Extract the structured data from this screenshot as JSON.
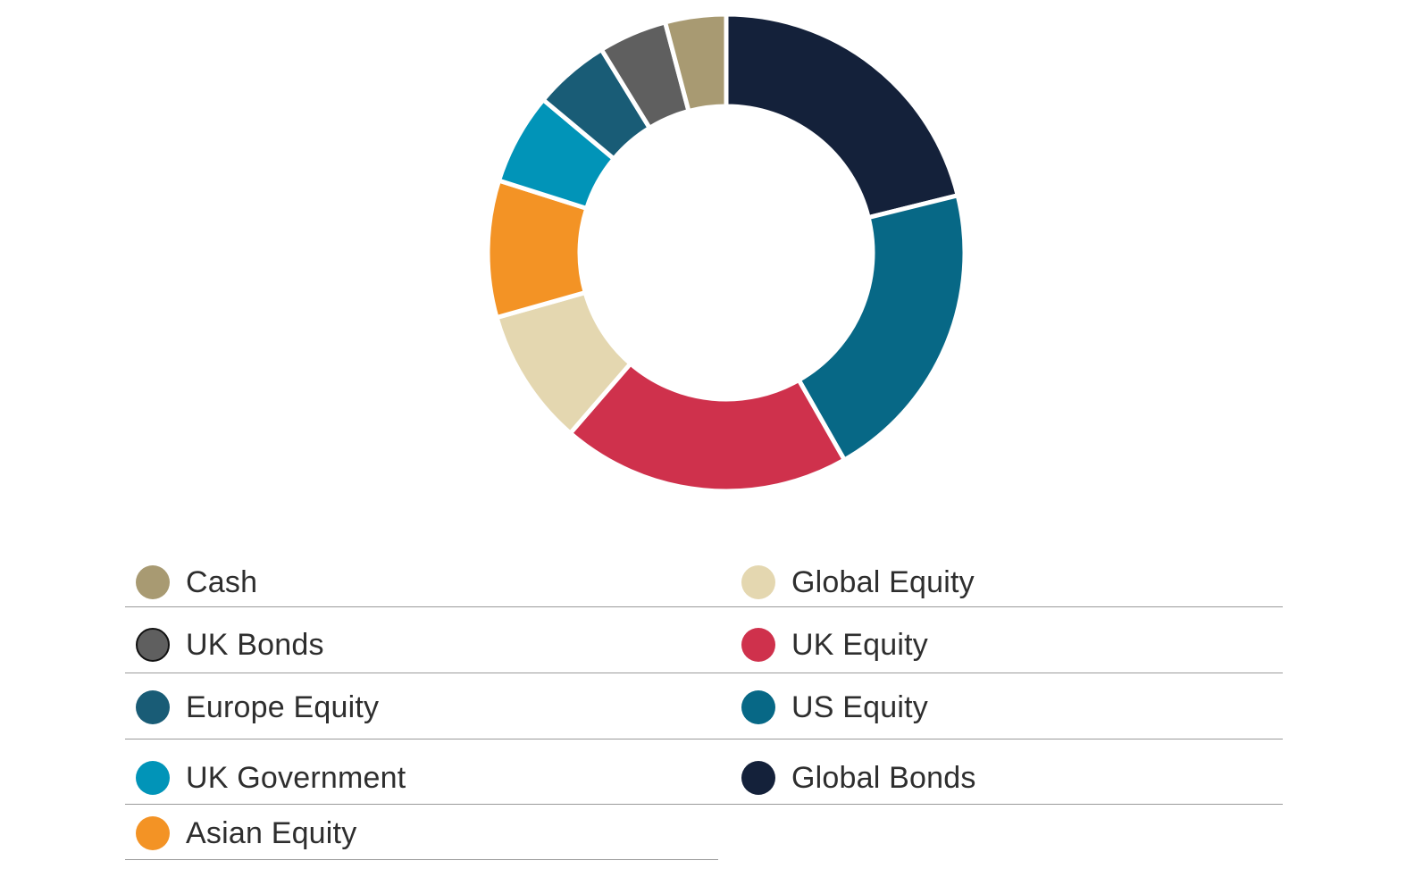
{
  "chart_data": {
    "type": "pie",
    "donut": true,
    "start": "top, clockwise",
    "slices": [
      {
        "label": "Global Bonds",
        "value": 20.5,
        "color": "#14213a"
      },
      {
        "label": "US Equity",
        "value": 20.0,
        "color": "#076886"
      },
      {
        "label": "UK Equity",
        "value": 19.0,
        "color": "#cf314c"
      },
      {
        "label": "Global Equity",
        "value": 9.0,
        "color": "#e4d7b0"
      },
      {
        "label": "Asian Equity",
        "value": 9.0,
        "color": "#f39325"
      },
      {
        "label": "UK Government",
        "value": 6.0,
        "color": "#0194b8"
      },
      {
        "label": "Europe Equity",
        "value": 5.0,
        "color": "#195c76"
      },
      {
        "label": "UK Bonds",
        "value": 4.5,
        "color": "#5f5f5f"
      },
      {
        "label": "Cash",
        "value": 4.0,
        "color": "#a89a72"
      }
    ]
  },
  "legend": {
    "items": [
      {
        "label": "Cash",
        "color": "#a89a72"
      },
      {
        "label": "Global Equity",
        "color": "#e4d7b0"
      },
      {
        "label": "UK Bonds",
        "color": "#5f5f5f",
        "outlined": true
      },
      {
        "label": "UK Equity",
        "color": "#cf314c"
      },
      {
        "label": "Europe Equity",
        "color": "#195c76"
      },
      {
        "label": "US Equity",
        "color": "#076886"
      },
      {
        "label": "UK Government",
        "color": "#0194b8"
      },
      {
        "label": "Global Bonds",
        "color": "#14213a"
      },
      {
        "label": "Asian Equity",
        "color": "#f39325"
      }
    ]
  }
}
